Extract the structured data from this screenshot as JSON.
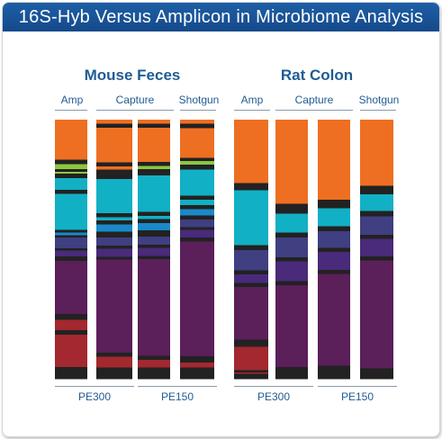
{
  "title": "16S-Hyb Versus Amplicon in Microbiome Analysis",
  "colors": {
    "header_bg": "#1a559a",
    "label_text": "#1f5c93",
    "orange": "#ee6f22",
    "black": "#222222",
    "green": "#8cc63f",
    "teal": "#12b0c4",
    "blue": "#1a88c9",
    "slate": "#3f3f82",
    "indigo": "#4a2a7a",
    "purple": "#5b1f5a",
    "red": "#a3282f"
  },
  "groups": [
    {
      "title": "Mouse Feces",
      "subgroups": [
        "Amp",
        "Capture",
        "Shotgun"
      ],
      "bottom_labels": [
        "PE300",
        "PE150"
      ]
    },
    {
      "title": "Rat Colon",
      "subgroups": [
        "Amp",
        "Capture",
        "Shotgun"
      ],
      "bottom_labels": [
        "PE300",
        "PE150"
      ]
    }
  ],
  "chart_data": {
    "type": "bar",
    "stacked": true,
    "normalized": true,
    "categories": [
      "Mouse Feces Amp",
      "Mouse Feces Capture PE300",
      "Mouse Feces Capture PE150",
      "Mouse Feces Shotgun",
      "Rat Colon Amp",
      "Rat Colon Capture PE300",
      "Rat Colon Capture PE150",
      "Rat Colon Shotgun"
    ],
    "bars": [
      {
        "segments": [
          {
            "c": "orange",
            "v": 14.9
          },
          {
            "c": "black",
            "v": 1.6
          },
          {
            "c": "green",
            "v": 1.9
          },
          {
            "c": "black",
            "v": 0.9
          },
          {
            "c": "green",
            "v": 0.7
          },
          {
            "c": "black",
            "v": 1.7
          },
          {
            "c": "teal",
            "v": 4.3
          },
          {
            "c": "black",
            "v": 1.6
          },
          {
            "c": "teal",
            "v": 13.4
          },
          {
            "c": "black",
            "v": 0.9
          },
          {
            "c": "blue",
            "v": 1.1
          },
          {
            "c": "black",
            "v": 0.8
          },
          {
            "c": "slate",
            "v": 3.9
          },
          {
            "c": "black",
            "v": 0.9
          },
          {
            "c": "indigo",
            "v": 2.2
          },
          {
            "c": "black",
            "v": 1.6
          },
          {
            "c": "purple",
            "v": 19.8
          },
          {
            "c": "black",
            "v": 2.1
          },
          {
            "c": "red",
            "v": 3.9
          },
          {
            "c": "black",
            "v": 1.6
          },
          {
            "c": "red",
            "v": 12.0
          },
          {
            "c": "black",
            "v": 4.4
          }
        ]
      },
      {
        "segments": [
          {
            "c": "orange",
            "v": 1.6
          },
          {
            "c": "black",
            "v": 1.6
          },
          {
            "c": "orange",
            "v": 13.7
          },
          {
            "c": "black",
            "v": 1.6
          },
          {
            "c": "orange",
            "v": 1.3
          },
          {
            "c": "black",
            "v": 3.7
          },
          {
            "c": "teal",
            "v": 13.7
          },
          {
            "c": "black",
            "v": 1.6
          },
          {
            "c": "teal",
            "v": 1.2
          },
          {
            "c": "black",
            "v": 1.6
          },
          {
            "c": "blue",
            "v": 2.8
          },
          {
            "c": "black",
            "v": 2.4
          },
          {
            "c": "slate",
            "v": 3.2
          },
          {
            "c": "black",
            "v": 1.2
          },
          {
            "c": "indigo",
            "v": 3.2
          },
          {
            "c": "black",
            "v": 1.2
          },
          {
            "c": "purple",
            "v": 36.9
          },
          {
            "c": "black",
            "v": 1.6
          },
          {
            "c": "red",
            "v": 4.4
          },
          {
            "c": "black",
            "v": 4.4
          }
        ]
      },
      {
        "segments": [
          {
            "c": "orange",
            "v": 1.6
          },
          {
            "c": "black",
            "v": 1.6
          },
          {
            "c": "orange",
            "v": 13.2
          },
          {
            "c": "black",
            "v": 1.6
          },
          {
            "c": "green",
            "v": 1.3
          },
          {
            "c": "black",
            "v": 2.4
          },
          {
            "c": "teal",
            "v": 14.2
          },
          {
            "c": "black",
            "v": 1.6
          },
          {
            "c": "teal",
            "v": 1.2
          },
          {
            "c": "black",
            "v": 1.6
          },
          {
            "c": "blue",
            "v": 2.8
          },
          {
            "c": "black",
            "v": 2.4
          },
          {
            "c": "slate",
            "v": 3.2
          },
          {
            "c": "black",
            "v": 1.2
          },
          {
            "c": "indigo",
            "v": 3.2
          },
          {
            "c": "black",
            "v": 1.2
          },
          {
            "c": "purple",
            "v": 37.7
          },
          {
            "c": "black",
            "v": 1.6
          },
          {
            "c": "red",
            "v": 2.9
          },
          {
            "c": "black",
            "v": 4.4
          }
        ]
      },
      {
        "segments": [
          {
            "c": "orange",
            "v": 1.6
          },
          {
            "c": "black",
            "v": 1.6
          },
          {
            "c": "orange",
            "v": 11.5
          },
          {
            "c": "black",
            "v": 1.2
          },
          {
            "c": "green",
            "v": 1.3
          },
          {
            "c": "black",
            "v": 2.0
          },
          {
            "c": "teal",
            "v": 10.0
          },
          {
            "c": "black",
            "v": 1.6
          },
          {
            "c": "teal",
            "v": 2.0
          },
          {
            "c": "black",
            "v": 1.6
          },
          {
            "c": "blue",
            "v": 2.4
          },
          {
            "c": "black",
            "v": 1.6
          },
          {
            "c": "slate",
            "v": 2.8
          },
          {
            "c": "black",
            "v": 1.2
          },
          {
            "c": "indigo",
            "v": 2.8
          },
          {
            "c": "black",
            "v": 1.6
          },
          {
            "c": "purple",
            "v": 44.0
          },
          {
            "c": "black",
            "v": 2.4
          },
          {
            "c": "red",
            "v": 1.9
          },
          {
            "c": "black",
            "v": 4.4
          }
        ]
      },
      {
        "segments": [
          {
            "c": "orange",
            "v": 24.5
          },
          {
            "c": "black",
            "v": 2.8
          },
          {
            "c": "teal",
            "v": 21.1
          },
          {
            "c": "black",
            "v": 2.0
          },
          {
            "c": "slate",
            "v": 7.8
          },
          {
            "c": "black",
            "v": 1.6
          },
          {
            "c": "indigo",
            "v": 3.2
          },
          {
            "c": "black",
            "v": 1.6
          },
          {
            "c": "purple",
            "v": 20.3
          },
          {
            "c": "black",
            "v": 2.8
          },
          {
            "c": "red",
            "v": 9.0
          },
          {
            "c": "black",
            "v": 0.9
          },
          {
            "c": "red",
            "v": 0.5
          },
          {
            "c": "black",
            "v": 1.9
          }
        ]
      },
      {
        "segments": [
          {
            "c": "orange",
            "v": 32.4
          },
          {
            "c": "black",
            "v": 3.9
          },
          {
            "c": "teal",
            "v": 7.2
          },
          {
            "c": "black",
            "v": 2.0
          },
          {
            "c": "slate",
            "v": 7.6
          },
          {
            "c": "black",
            "v": 1.6
          },
          {
            "c": "indigo",
            "v": 7.6
          },
          {
            "c": "black",
            "v": 1.6
          },
          {
            "c": "purple",
            "v": 31.6
          },
          {
            "c": "black",
            "v": 4.5
          }
        ]
      },
      {
        "segments": [
          {
            "c": "orange",
            "v": 30.9
          },
          {
            "c": "black",
            "v": 3.3
          },
          {
            "c": "teal",
            "v": 6.9
          },
          {
            "c": "black",
            "v": 2.0
          },
          {
            "c": "slate",
            "v": 6.4
          },
          {
            "c": "black",
            "v": 1.6
          },
          {
            "c": "indigo",
            "v": 6.8
          },
          {
            "c": "black",
            "v": 1.6
          },
          {
            "c": "purple",
            "v": 35.4
          },
          {
            "c": "black",
            "v": 5.1
          }
        ]
      },
      {
        "segments": [
          {
            "c": "orange",
            "v": 25.6
          },
          {
            "c": "black",
            "v": 3.2
          },
          {
            "c": "teal",
            "v": 6.5
          },
          {
            "c": "black",
            "v": 2.0
          },
          {
            "c": "slate",
            "v": 7.1
          },
          {
            "c": "black",
            "v": 1.6
          },
          {
            "c": "indigo",
            "v": 6.8
          },
          {
            "c": "black",
            "v": 1.6
          },
          {
            "c": "purple",
            "v": 41.6
          },
          {
            "c": "black",
            "v": 4.0
          }
        ]
      }
    ]
  }
}
